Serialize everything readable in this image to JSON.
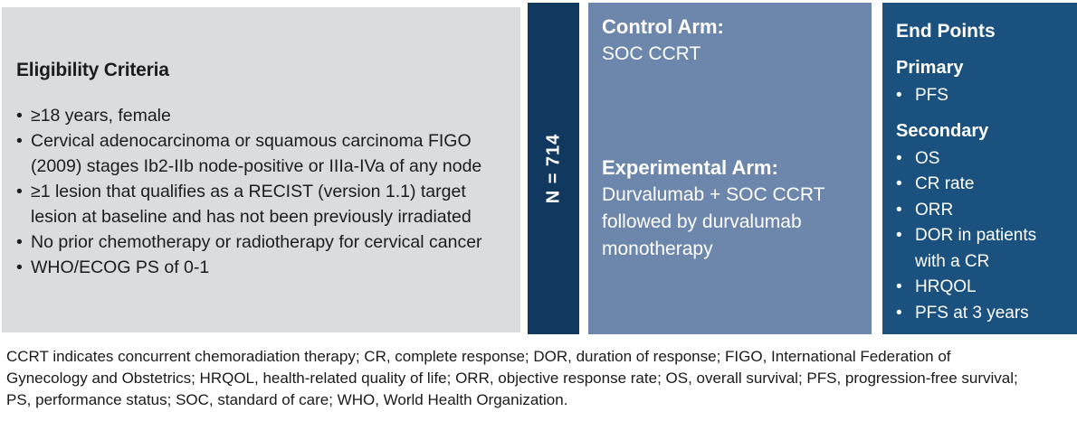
{
  "figure": {
    "type": "clinical-trial-study-design",
    "colors": {
      "eligibility_bg": "#dadcde",
      "n_bar_bg": "#11395f",
      "arms_bg": "#6c86ac",
      "endpoints_bg": "#1a517e",
      "light_text": "#ffffff",
      "dark_text": "#1c1c1c"
    }
  },
  "eligibility": {
    "title": "Eligibility Criteria",
    "items": [
      "≥18 years, female",
      "Cervical adenocarcinoma or squamous carcinoma FIGO (2009) stages Ib2-IIb node-positive or IIIa-IVa of any node",
      "≥1 lesion that qualifies as a RECIST (version 1.1) target lesion at baseline and has not been previously irradiated",
      "No prior chemotherapy or radiotherapy for cervical cancer",
      "WHO/ECOG PS of 0-1"
    ],
    "bullet": "•"
  },
  "cohort": {
    "label": "N = 714"
  },
  "arms": {
    "control_label": "Control Arm:",
    "control_value": "SOC CCRT",
    "experimental_label": "Experimental Arm:",
    "experimental_value": "Durvalumab + SOC CCRT followed by durvalumab monotherapy"
  },
  "endpoints": {
    "title": "End Points",
    "primary_label": "Primary",
    "primary_items": [
      "PFS"
    ],
    "secondary_label": "Secondary",
    "secondary_items": [
      "OS",
      "CR rate",
      "ORR",
      "DOR in patients with a CR",
      "HRQOL",
      "PFS at 3 years"
    ],
    "bullet": "•"
  },
  "footnote": {
    "lines": [
      "CCRT indicates concurrent chemoradiation therapy; CR, complete response; DOR, duration of response; FIGO, International Federation of",
      "Gynecology and Obstetrics; HRQOL, health-related quality of life; ORR, objective response rate; OS, overall survival; PFS, progression-free survival;",
      "PS, performance status; SOC, standard of care; WHO, World Health Organization."
    ]
  }
}
